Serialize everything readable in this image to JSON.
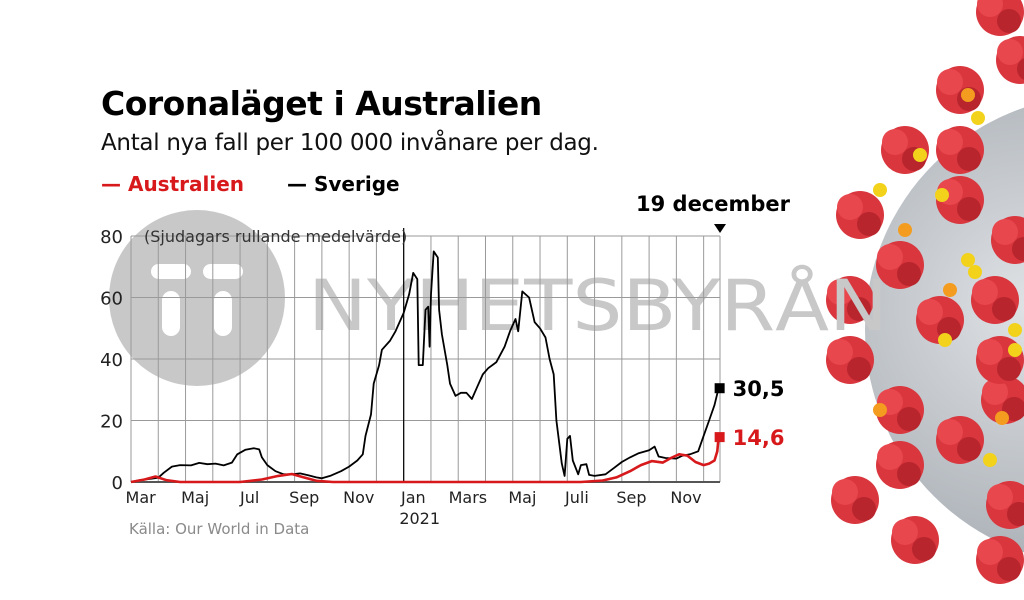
{
  "watermark": {
    "logo": "TT",
    "text": "NYHETSBYRÅN"
  },
  "chart_data": {
    "type": "line",
    "title": "Coronaläget i Australien",
    "subtitle": "Antal nya fall per 100 000 invånare per dag.",
    "note": "(Sjudagars rullande medelvärde)",
    "source": "Källa: Our World in Data",
    "date_marker": "19 december",
    "xlabel": "",
    "ylabel": "",
    "x_unit": "months since 1 March 2020",
    "xlim": [
      0,
      21.6
    ],
    "ylim": [
      0,
      80
    ],
    "yticks": [
      0,
      20,
      40,
      60,
      80
    ],
    "ytick_labels": [
      "0",
      "20",
      "40",
      "60",
      "80"
    ],
    "xticks": [
      0.5,
      2.5,
      4.5,
      6.5,
      8.5,
      10.5,
      12.5,
      14.5,
      16.5,
      18.5,
      20.5
    ],
    "xtick_labels": [
      "Mar",
      "Maj",
      "Jul",
      "Sep",
      "Nov",
      "Jan",
      "Mars",
      "Maj",
      "Juli",
      "Sep",
      "Nov"
    ],
    "year_label": "2021",
    "year_divider_x": 10,
    "grid": true,
    "legend": "top-left",
    "series": [
      {
        "name": "Australien",
        "color": "#d7191c",
        "end_label": "14,6",
        "end_value": 14.6,
        "points": [
          [
            0,
            0
          ],
          [
            0.5,
            0.8
          ],
          [
            0.9,
            1.8
          ],
          [
            1.3,
            0.6
          ],
          [
            1.8,
            0
          ],
          [
            3,
            0
          ],
          [
            4,
            0
          ],
          [
            4.8,
            0.8
          ],
          [
            5.4,
            2
          ],
          [
            5.9,
            2.6
          ],
          [
            6.3,
            1.6
          ],
          [
            6.8,
            0.4
          ],
          [
            7.4,
            0
          ],
          [
            9,
            0
          ],
          [
            12,
            0
          ],
          [
            15,
            0
          ],
          [
            16.5,
            0
          ],
          [
            17.3,
            0.5
          ],
          [
            17.8,
            1.5
          ],
          [
            18.3,
            3.5
          ],
          [
            18.7,
            5.5
          ],
          [
            19.1,
            6.8
          ],
          [
            19.5,
            6.3
          ],
          [
            19.8,
            7.8
          ],
          [
            20.1,
            9
          ],
          [
            20.4,
            8.6
          ],
          [
            20.7,
            6.5
          ],
          [
            21,
            5.5
          ],
          [
            21.2,
            6
          ],
          [
            21.4,
            7
          ],
          [
            21.5,
            10
          ],
          [
            21.55,
            14.6
          ]
        ]
      },
      {
        "name": "Sverige",
        "color": "#000000",
        "end_label": "30,5",
        "end_value": 30.5,
        "points": [
          [
            0,
            0
          ],
          [
            0.3,
            0.6
          ],
          [
            0.7,
            1
          ],
          [
            1,
            1.4
          ],
          [
            1.2,
            3
          ],
          [
            1.5,
            5
          ],
          [
            1.8,
            5.5
          ],
          [
            2.2,
            5.4
          ],
          [
            2.5,
            6.2
          ],
          [
            2.8,
            5.8
          ],
          [
            3.1,
            6
          ],
          [
            3.4,
            5.4
          ],
          [
            3.7,
            6.3
          ],
          [
            3.9,
            9
          ],
          [
            4.2,
            10.5
          ],
          [
            4.5,
            11
          ],
          [
            4.7,
            10.6
          ],
          [
            4.8,
            8
          ],
          [
            5,
            5.5
          ],
          [
            5.3,
            3.5
          ],
          [
            5.6,
            2.5
          ],
          [
            5.9,
            2.5
          ],
          [
            6.2,
            2.8
          ],
          [
            6.5,
            2.2
          ],
          [
            6.8,
            1.5
          ],
          [
            7,
            1.2
          ],
          [
            7.3,
            2
          ],
          [
            7.7,
            3.5
          ],
          [
            8,
            5
          ],
          [
            8.3,
            7
          ],
          [
            8.5,
            9
          ],
          [
            8.6,
            15
          ],
          [
            8.8,
            22
          ],
          [
            8.9,
            32
          ],
          [
            9.1,
            38
          ],
          [
            9.2,
            43
          ],
          [
            9.5,
            46
          ],
          [
            9.7,
            49
          ],
          [
            10,
            55
          ],
          [
            10.2,
            61
          ],
          [
            10.35,
            68
          ],
          [
            10.5,
            66
          ],
          [
            10.55,
            38
          ],
          [
            10.7,
            38
          ],
          [
            10.8,
            56
          ],
          [
            10.9,
            57
          ],
          [
            10.95,
            44
          ],
          [
            11,
            61
          ],
          [
            11.1,
            75
          ],
          [
            11.25,
            73
          ],
          [
            11.3,
            56
          ],
          [
            11.4,
            48
          ],
          [
            11.6,
            38
          ],
          [
            11.7,
            32
          ],
          [
            11.9,
            28
          ],
          [
            12.1,
            29
          ],
          [
            12.3,
            29
          ],
          [
            12.5,
            27
          ],
          [
            12.7,
            31
          ],
          [
            12.9,
            35
          ],
          [
            13.1,
            37
          ],
          [
            13.4,
            39
          ],
          [
            13.7,
            44
          ],
          [
            13.9,
            49
          ],
          [
            14.1,
            53
          ],
          [
            14.2,
            49
          ],
          [
            14.35,
            62
          ],
          [
            14.6,
            60
          ],
          [
            14.8,
            52
          ],
          [
            15,
            50
          ],
          [
            15.2,
            47
          ],
          [
            15.35,
            40
          ],
          [
            15.5,
            35
          ],
          [
            15.6,
            20
          ],
          [
            15.7,
            13
          ],
          [
            15.8,
            6
          ],
          [
            15.9,
            2
          ],
          [
            16,
            14
          ],
          [
            16.1,
            15
          ],
          [
            16.2,
            7
          ],
          [
            16.4,
            2.5
          ],
          [
            16.5,
            5.5
          ],
          [
            16.7,
            5.8
          ],
          [
            16.8,
            2.3
          ],
          [
            17,
            2
          ],
          [
            17.4,
            2.5
          ],
          [
            17.7,
            4.5
          ],
          [
            18,
            6.5
          ],
          [
            18.3,
            8
          ],
          [
            18.6,
            9.3
          ],
          [
            19,
            10.3
          ],
          [
            19.2,
            11.5
          ],
          [
            19.35,
            8.3
          ],
          [
            19.6,
            7.8
          ],
          [
            20,
            7.6
          ],
          [
            20.2,
            8.5
          ],
          [
            20.5,
            9
          ],
          [
            20.8,
            10
          ],
          [
            21,
            15
          ],
          [
            21.2,
            20
          ],
          [
            21.4,
            25
          ],
          [
            21.55,
            30.5
          ]
        ]
      }
    ]
  }
}
